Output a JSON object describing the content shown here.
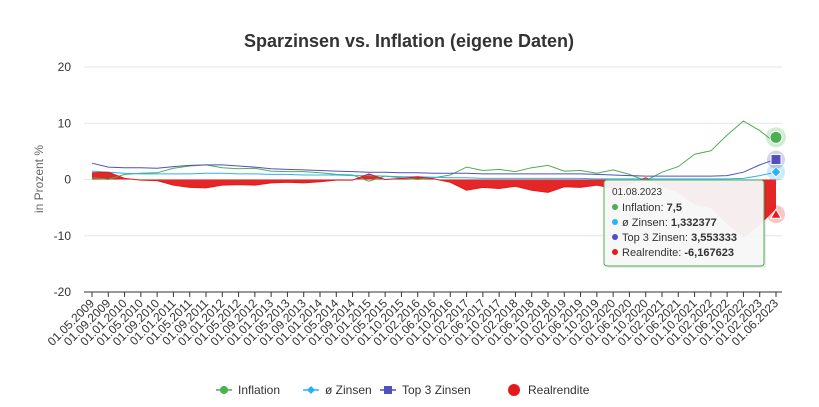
{
  "chart_data": {
    "type": "line",
    "title": "Sparzinsen vs. Inflation (eigene Daten)",
    "ylabel": "in Prozent %",
    "ylim": [
      -20,
      20
    ],
    "yticks": [
      -20,
      -10,
      0,
      10,
      20
    ],
    "grid": true,
    "legend_position": "bottom-center",
    "x_tick_labels": [
      "01.05.2009",
      "01.09.2009",
      "01.01.2010",
      "01.05.2010",
      "01.09.2010",
      "01.01.2011",
      "01.05.2011",
      "01.09.2011",
      "01.01.2012",
      "01.05.2012",
      "01.09.2012",
      "01.01.2013",
      "01.05.2013",
      "01.09.2013",
      "01.01.2014",
      "01.05.2014",
      "01.09.2014",
      "01.01.2015",
      "01.05.2015",
      "01.10.2015",
      "01.02.2016",
      "01.06.2016",
      "01.10.2016",
      "01.02.2017",
      "01.06.2017",
      "01.10.2017",
      "01.02.2018",
      "01.06.2018",
      "01.10.2018",
      "01.02.2019",
      "01.06.2019",
      "01.10.2019",
      "01.02.2020",
      "01.06.2020",
      "01.10.2020",
      "01.02.2021",
      "01.06.2021",
      "01.10.2021",
      "01.02.2022",
      "01.06.2022",
      "01.10.2022",
      "01.02.2023",
      "01.06.2023"
    ],
    "series": [
      {
        "name": "Inflation",
        "color": "#4caf50",
        "marker": "circle",
        "values": [
          0.3,
          0.0,
          0.9,
          1.1,
          1.2,
          2.0,
          2.4,
          2.6,
          2.1,
          1.9,
          2.0,
          1.5,
          1.4,
          1.4,
          1.2,
          0.9,
          0.8,
          -0.3,
          0.6,
          0.3,
          0.0,
          0.3,
          0.8,
          2.2,
          1.6,
          1.8,
          1.4,
          2.1,
          2.5,
          1.5,
          1.6,
          1.1,
          1.7,
          0.9,
          -0.2,
          1.3,
          2.3,
          4.5,
          5.1,
          7.9,
          10.4,
          8.7,
          6.4
        ]
      },
      {
        "name": "ø Zinsen",
        "color": "#2ab0f5",
        "marker": "diamond",
        "values": [
          1.5,
          1.3,
          1.1,
          1.0,
          1.0,
          1.0,
          1.0,
          1.1,
          1.1,
          1.0,
          1.0,
          0.9,
          0.9,
          0.8,
          0.8,
          0.8,
          0.7,
          0.7,
          0.6,
          0.5,
          0.5,
          0.4,
          0.3,
          0.3,
          0.2,
          0.2,
          0.2,
          0.2,
          0.2,
          0.2,
          0.2,
          0.1,
          0.1,
          0.1,
          0.1,
          0.1,
          0.1,
          0.1,
          0.1,
          0.1,
          0.2,
          0.7,
          1.3
        ]
      },
      {
        "name": "Top 3 Zinsen",
        "color": "#5050c0",
        "marker": "square",
        "values": [
          2.9,
          2.2,
          2.1,
          2.1,
          2.0,
          2.3,
          2.5,
          2.6,
          2.6,
          2.4,
          2.2,
          1.9,
          1.8,
          1.7,
          1.6,
          1.5,
          1.4,
          1.3,
          1.3,
          1.2,
          1.2,
          1.1,
          1.1,
          1.1,
          1.0,
          1.0,
          1.0,
          1.0,
          1.0,
          1.0,
          1.0,
          0.9,
          0.8,
          0.7,
          0.6,
          0.6,
          0.6,
          0.6,
          0.6,
          0.7,
          1.3,
          2.6,
          3.6
        ]
      },
      {
        "name": "Realrendite",
        "color": "#e31a1a",
        "marker": "triangle",
        "values": [
          1.2,
          1.3,
          0.2,
          -0.1,
          -0.2,
          -1.0,
          -1.4,
          -1.5,
          -1.0,
          -0.9,
          -1.0,
          -0.6,
          -0.5,
          -0.6,
          -0.4,
          -0.1,
          -0.1,
          1.0,
          0.0,
          0.2,
          0.5,
          0.1,
          -0.5,
          -1.9,
          -1.4,
          -1.6,
          -1.2,
          -1.9,
          -2.3,
          -1.3,
          -1.4,
          -1.0,
          -1.6,
          -0.8,
          0.3,
          -1.2,
          -2.2,
          -4.4,
          -5.0,
          -7.8,
          -10.2,
          -8.0,
          -5.1
        ]
      }
    ],
    "tooltip": {
      "date": "01.08.2023",
      "rows": [
        {
          "label": "Inflation",
          "value": "7,5",
          "color": "#4caf50"
        },
        {
          "label": "ø Zinsen",
          "value": "1,332377",
          "color": "#2ab0f5"
        },
        {
          "label": "Top 3 Zinsen",
          "value": "3,553333",
          "color": "#5050c0"
        },
        {
          "label": "Realrendite",
          "value": "-6,167623",
          "color": "#e31a1a"
        }
      ],
      "last_values": {
        "Inflation": 7.5,
        "ø Zinsen": 1.332377,
        "Top 3 Zinsen": 3.553333,
        "Realrendite": -6.167623
      }
    }
  }
}
